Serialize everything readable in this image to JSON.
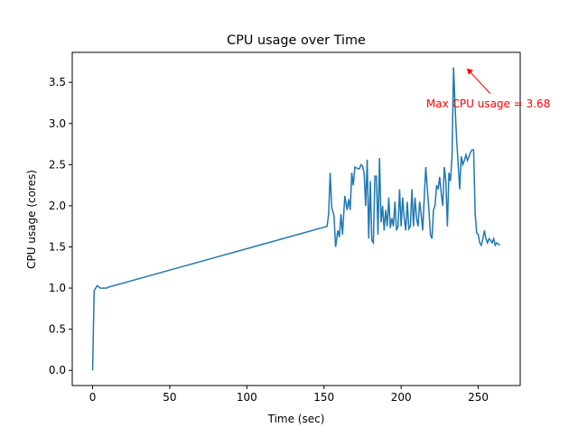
{
  "chart_data": {
    "type": "line",
    "title": "CPU usage over Time",
    "xlabel": "Time (sec)",
    "ylabel": "CPU usage (cores)",
    "series": [
      {
        "name": "CPU usage",
        "color": "#1f77b4",
        "x": [
          0,
          1,
          3,
          5,
          9,
          10,
          152,
          153,
          154,
          155,
          156.5,
          157.5,
          159,
          160,
          161,
          162,
          163.5,
          165,
          166,
          167,
          168,
          169,
          170,
          172,
          173,
          174,
          175,
          176,
          177,
          178,
          179,
          180,
          181,
          182,
          183,
          184,
          185,
          186,
          187,
          188,
          189,
          190,
          191,
          192,
          193,
          194,
          195,
          196,
          197,
          198,
          199,
          200,
          201,
          202,
          203,
          204,
          205,
          206,
          207,
          208,
          209,
          210,
          211,
          212,
          213,
          214,
          215,
          216,
          217,
          218,
          219,
          220,
          221,
          222,
          223,
          224,
          225,
          226,
          227,
          228,
          229,
          230,
          231,
          232,
          233,
          234,
          235,
          236,
          237,
          238,
          239,
          240,
          241,
          242,
          243,
          244,
          245,
          246,
          247,
          248,
          249,
          250,
          251,
          252,
          253,
          254,
          255,
          256,
          257,
          258,
          259,
          260,
          261,
          262,
          264
        ],
        "values": [
          0.0,
          0.97,
          1.03,
          1.0,
          1.0,
          1.01,
          1.75,
          1.9,
          2.4,
          1.98,
          1.88,
          1.5,
          1.7,
          1.62,
          1.9,
          1.65,
          2.12,
          1.95,
          2.08,
          1.95,
          2.4,
          2.25,
          2.47,
          2.45,
          2.45,
          2.5,
          2.48,
          2.4,
          2.0,
          2.56,
          1.6,
          2.3,
          1.58,
          1.55,
          2.36,
          2.36,
          1.65,
          2.58,
          1.8,
          2.0,
          1.7,
          1.95,
          1.75,
          2.1,
          1.73,
          1.85,
          1.75,
          2.05,
          1.7,
          1.75,
          2.2,
          1.75,
          2.1,
          1.85,
          1.7,
          2.05,
          1.72,
          1.75,
          2.2,
          1.75,
          2.1,
          1.85,
          1.75,
          2.05,
          1.9,
          1.7,
          2.1,
          2.47,
          2.2,
          1.95,
          1.65,
          1.6,
          1.95,
          2.0,
          2.25,
          2.2,
          2.35,
          2.15,
          2.0,
          2.47,
          2.3,
          1.75,
          2.4,
          2.3,
          2.6,
          3.68,
          3.2,
          2.8,
          2.5,
          2.2,
          2.6,
          2.5,
          2.55,
          2.62,
          2.55,
          2.6,
          2.65,
          2.68,
          2.68,
          1.9,
          1.67,
          1.65,
          1.55,
          1.52,
          1.6,
          1.7,
          1.6,
          1.55,
          1.6,
          1.58,
          1.55,
          1.6,
          1.52,
          1.55,
          1.52
        ]
      }
    ],
    "xlim": [
      -13.2,
      277.2
    ],
    "xticks": [
      0,
      50,
      100,
      150,
      200,
      250
    ],
    "ylim": [
      -0.184,
      3.864
    ],
    "yticks": [
      {
        "value": 0,
        "label": "0.0"
      },
      0.5,
      {
        "value": 1,
        "label": "1.0"
      },
      1.5,
      {
        "value": 2,
        "label": "2.0"
      },
      2.5,
      {
        "value": 3,
        "label": "3.0"
      },
      3.5
    ],
    "annotation": {
      "text": "Max CPU usage = 3.68",
      "x": 242,
      "y": 3.68,
      "color": "red"
    }
  }
}
